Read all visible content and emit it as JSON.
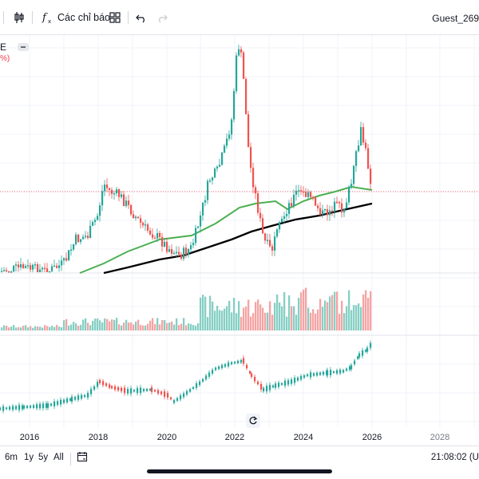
{
  "toolbar": {
    "indicators_label": "Các chỉ báo",
    "user": "Guest_269"
  },
  "legend": {
    "symbol_fragment": "E",
    "change_fragment": "%)"
  },
  "time_axis": {
    "ticks": [
      "2016",
      "2018",
      "2020",
      "2022",
      "2024",
      "2026",
      "2028"
    ]
  },
  "bottom_bar": {
    "ranges": [
      "6m",
      "1y",
      "5y",
      "All"
    ],
    "clock": "21:08:02 (U"
  },
  "colors": {
    "up": "#26a69a",
    "down": "#ef5350",
    "ma_fast": "#4caf50",
    "ma_slow": "#000000",
    "price_line": "#f23645"
  },
  "icons": {
    "compare": "compare-icon",
    "indicators": "function-icon",
    "templates": "grid-icon",
    "undo": "undo-icon",
    "redo": "redo-icon",
    "reset": "reset-icon",
    "date_range": "calendar-icon"
  }
}
